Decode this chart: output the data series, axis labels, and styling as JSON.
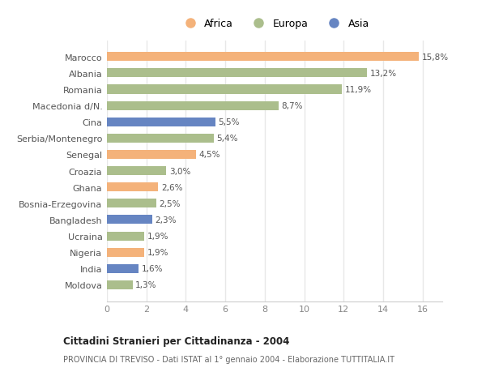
{
  "countries": [
    "Marocco",
    "Albania",
    "Romania",
    "Macedonia d/N.",
    "Cina",
    "Serbia/Montenegro",
    "Senegal",
    "Croazia",
    "Ghana",
    "Bosnia-Erzegovina",
    "Bangladesh",
    "Ucraina",
    "Nigeria",
    "India",
    "Moldova"
  ],
  "values": [
    15.8,
    13.2,
    11.9,
    8.7,
    5.5,
    5.4,
    4.5,
    3.0,
    2.6,
    2.5,
    2.3,
    1.9,
    1.9,
    1.6,
    1.3
  ],
  "labels": [
    "15,8%",
    "13,2%",
    "11,9%",
    "8,7%",
    "5,5%",
    "5,4%",
    "4,5%",
    "3,0%",
    "2,6%",
    "2,5%",
    "2,3%",
    "1,9%",
    "1,9%",
    "1,6%",
    "1,3%"
  ],
  "continents": [
    "Africa",
    "Europa",
    "Europa",
    "Europa",
    "Asia",
    "Europa",
    "Africa",
    "Europa",
    "Africa",
    "Europa",
    "Asia",
    "Europa",
    "Africa",
    "Asia",
    "Europa"
  ],
  "colors": {
    "Africa": "#F4B27A",
    "Europa": "#ABBE8C",
    "Asia": "#6685C2"
  },
  "legend_order": [
    "Africa",
    "Europa",
    "Asia"
  ],
  "title": "Cittadini Stranieri per Cittadinanza - 2004",
  "subtitle": "PROVINCIA DI TREVISO - Dati ISTAT al 1° gennaio 2004 - Elaborazione TUTTITALIA.IT",
  "xlim": [
    0,
    17
  ],
  "xticks": [
    0,
    2,
    4,
    6,
    8,
    10,
    12,
    14,
    16
  ],
  "background_color": "#ffffff",
  "plot_bg": "#ffffff",
  "grid_color": "#e8e8e8"
}
